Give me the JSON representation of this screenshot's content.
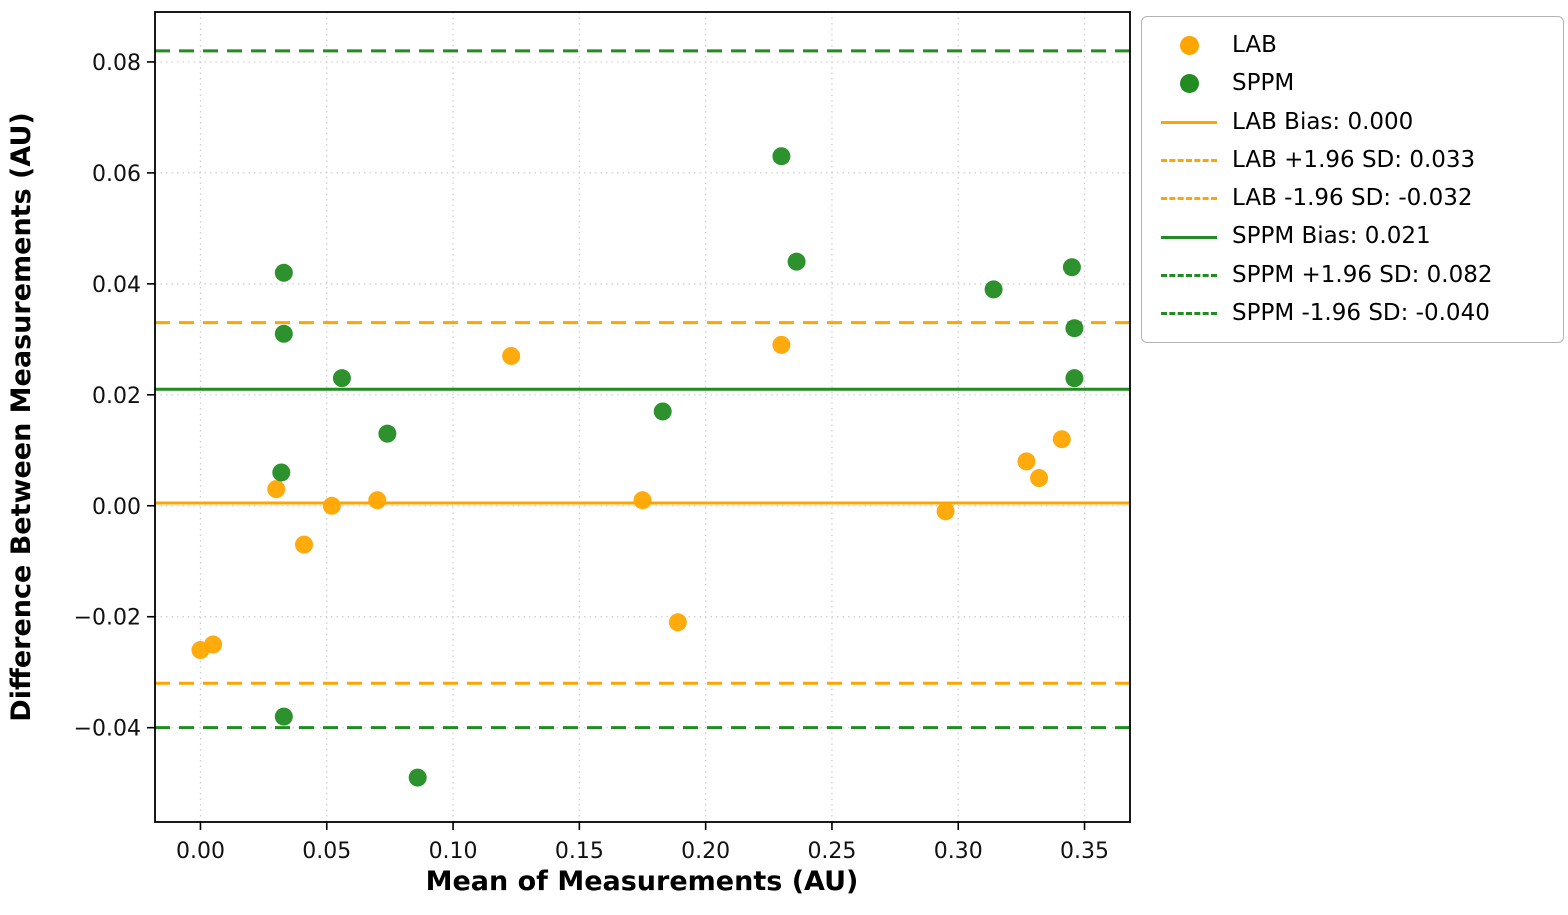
{
  "figure": {
    "background": "#ffffff"
  },
  "colors": {
    "lab": "#FFA500",
    "sppm": "#228B22",
    "grid": "#cdcdcd",
    "axis": "#000000",
    "tick_text": "#111111"
  },
  "chart_data": {
    "type": "scatter",
    "title": "",
    "xlabel": "Mean of Measurements (AU)",
    "ylabel": "Difference Between Measurements (AU)",
    "xlim": [
      -0.018,
      0.368
    ],
    "ylim": [
      -0.057,
      0.089
    ],
    "grid": true,
    "legend_position": "outside-top-right",
    "xticks": [
      0.0,
      0.05,
      0.1,
      0.15,
      0.2,
      0.25,
      0.3,
      0.35
    ],
    "xtick_labels": [
      "0.00",
      "0.05",
      "0.10",
      "0.15",
      "0.20",
      "0.25",
      "0.30",
      "0.35"
    ],
    "yticks": [
      -0.04,
      -0.02,
      0.0,
      0.02,
      0.04,
      0.06,
      0.08
    ],
    "ytick_labels": [
      "−0.04",
      "−0.02",
      "0.00",
      "0.02",
      "0.04",
      "0.06",
      "0.08"
    ],
    "series": [
      {
        "name": "LAB",
        "marker": "circle",
        "color": "#FFA500",
        "points": [
          [
            0.0,
            -0.026
          ],
          [
            0.005,
            -0.025
          ],
          [
            0.03,
            0.003
          ],
          [
            0.041,
            -0.007
          ],
          [
            0.052,
            0.0
          ],
          [
            0.07,
            0.001
          ],
          [
            0.123,
            0.027
          ],
          [
            0.175,
            0.001
          ],
          [
            0.189,
            -0.021
          ],
          [
            0.23,
            0.029
          ],
          [
            0.295,
            -0.001
          ],
          [
            0.327,
            0.008
          ],
          [
            0.332,
            0.005
          ],
          [
            0.341,
            0.012
          ]
        ]
      },
      {
        "name": "SPPM",
        "marker": "circle",
        "color": "#228B22",
        "points": [
          [
            0.033,
            0.042
          ],
          [
            0.033,
            0.031
          ],
          [
            0.032,
            0.006
          ],
          [
            0.033,
            -0.038
          ],
          [
            0.056,
            0.023
          ],
          [
            0.074,
            0.013
          ],
          [
            0.086,
            -0.049
          ],
          [
            0.183,
            0.017
          ],
          [
            0.23,
            0.063
          ],
          [
            0.236,
            0.044
          ],
          [
            0.314,
            0.039
          ],
          [
            0.345,
            0.043
          ],
          [
            0.346,
            0.032
          ],
          [
            0.346,
            0.023
          ]
        ]
      }
    ],
    "lines": [
      {
        "label": "LAB Bias: 0.000",
        "y": 0.0005,
        "color": "#FFA500",
        "style": "solid"
      },
      {
        "label": "LAB +1.96 SD: 0.033",
        "y": 0.033,
        "color": "#FFA500",
        "style": "dashed"
      },
      {
        "label": "LAB -1.96 SD: -0.032",
        "y": -0.032,
        "color": "#FFA500",
        "style": "dashed"
      },
      {
        "label": "SPPM Bias: 0.021",
        "y": 0.021,
        "color": "#228B22",
        "style": "solid"
      },
      {
        "label": "SPPM +1.96 SD: 0.082",
        "y": 0.082,
        "color": "#228B22",
        "style": "dashed"
      },
      {
        "label": "SPPM -1.96 SD: -0.040",
        "y": -0.04,
        "color": "#228B22",
        "style": "dashed"
      }
    ],
    "legend": [
      {
        "label": "LAB",
        "swatch": "dot",
        "color": "#FFA500"
      },
      {
        "label": "SPPM",
        "swatch": "dot",
        "color": "#228B22"
      },
      {
        "label": "LAB Bias: 0.000",
        "swatch": "line-solid",
        "color": "#FFA500"
      },
      {
        "label": "LAB +1.96 SD: 0.033",
        "swatch": "line-dashed",
        "color": "#FFA500"
      },
      {
        "label": "LAB -1.96 SD: -0.032",
        "swatch": "line-dashed",
        "color": "#FFA500"
      },
      {
        "label": "SPPM Bias: 0.021",
        "swatch": "line-solid",
        "color": "#228B22"
      },
      {
        "label": "SPPM +1.96 SD: 0.082",
        "swatch": "line-dashed",
        "color": "#228B22"
      },
      {
        "label": "SPPM -1.96 SD: -0.040",
        "swatch": "line-dashed",
        "color": "#228B22"
      }
    ]
  }
}
